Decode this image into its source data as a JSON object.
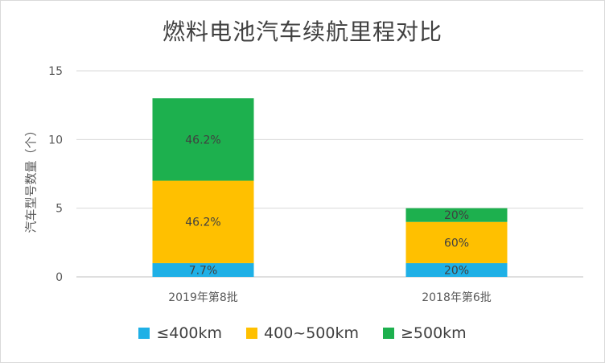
{
  "chart_data": {
    "type": "bar",
    "stacked": true,
    "title": "燃料电池汽车续航里程对比",
    "xlabel": "",
    "ylabel": "汽车型号数量（个）",
    "categories": [
      "2019年第8批",
      "2018年第6批"
    ],
    "ylim": [
      0,
      15
    ],
    "yticks": [
      "0",
      "5",
      "10",
      "15"
    ],
    "grid": true,
    "legend_position": "bottom",
    "series": [
      {
        "name": "≤400km",
        "color": "#1fb0e6",
        "values": [
          1,
          1
        ],
        "labels": [
          "7.7%",
          "20%"
        ]
      },
      {
        "name": "400~500km",
        "color": "#ffc000",
        "values": [
          6,
          3
        ],
        "labels": [
          "46.2%",
          "60%"
        ]
      },
      {
        "name": "≥500km",
        "color": "#1db04e",
        "values": [
          6,
          1
        ],
        "labels": [
          "46.2%",
          "20%"
        ]
      }
    ]
  }
}
